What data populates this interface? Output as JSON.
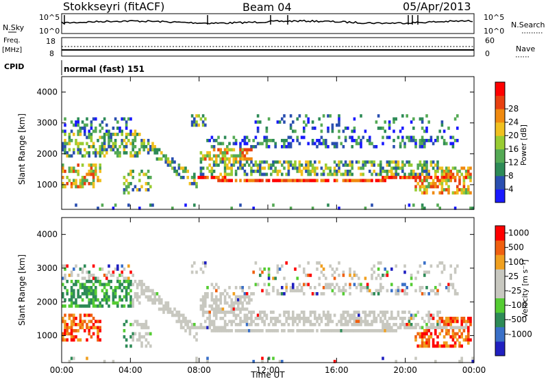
{
  "header": {
    "station": "Stokkseyri (fitACF)",
    "beam": "Beam 04",
    "date": "05/Apr/2013"
  },
  "status_rows": {
    "nsky_label": "N.Sky",
    "nsearch_label": "N.Search",
    "nsky_ticks": [
      "10^5",
      "10^0"
    ],
    "nsearch_ticks": [
      "10^5",
      "10^0"
    ],
    "freq_label_1": "Freq.",
    "freq_label_2": "[MHz]",
    "freq_ticks": [
      "18",
      "8"
    ],
    "nave_label": "Nave",
    "nave_ticks": [
      "60",
      "0"
    ],
    "cpid_label": "CPID",
    "cpid_value": "normal (fast) 151"
  },
  "colors": {
    "power_scale": [
      "#1a1aff",
      "#2a4fb0",
      "#2e8b57",
      "#55aa55",
      "#99cc33",
      "#f0c020",
      "#f08a10",
      "#e84010",
      "#ff0000"
    ],
    "velocity_scale": [
      "#2020c0",
      "#3a70c8",
      "#2e8b57",
      "#55cc33",
      "#c8c8c0",
      "#c8c8c0",
      "#f0a020",
      "#f06010",
      "#ff0000"
    ],
    "ground_scatter": "#c8c8c0"
  },
  "chart_data": [
    {
      "type": "heatmap",
      "name": "power",
      "ylabel": "Slant Range [km]",
      "y_ticks": [
        "1000",
        "2000",
        "3000",
        "4000"
      ],
      "ylim": [
        200,
        4500
      ],
      "colorbar_label": "Power [dB]",
      "colorbar_ticks": [
        "4",
        "8",
        "12",
        "16",
        "20",
        "24",
        "28"
      ],
      "colorbar_range": [
        0,
        30
      ]
    },
    {
      "type": "heatmap",
      "name": "velocity",
      "ylabel": "Slant Range [km]",
      "y_ticks": [
        "1000",
        "2000",
        "3000",
        "4000"
      ],
      "ylim": [
        200,
        4500
      ],
      "colorbar_label": "Velocity [m s⁻¹]",
      "colorbar_ticks": [
        "1000",
        "500",
        "100",
        "25",
        "-25",
        "-100",
        "-500",
        "-1000"
      ]
    }
  ],
  "x_axis": {
    "ticks": [
      "00:00",
      "04:00",
      "08:00",
      "12:00",
      "16:00",
      "20:00",
      "00:00"
    ],
    "label": "Time UT",
    "range_hours": [
      0,
      24
    ]
  }
}
